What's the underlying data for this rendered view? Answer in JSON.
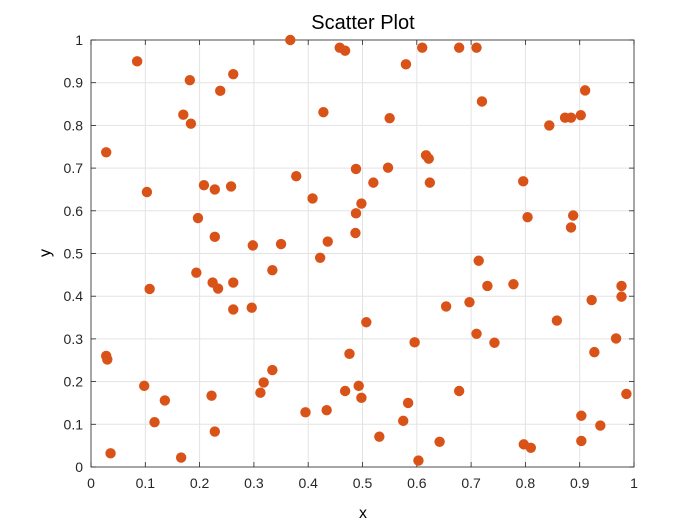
{
  "chart_data": {
    "type": "scatter",
    "title": "Scatter Plot",
    "xlabel": "x",
    "ylabel": "y",
    "xlim": [
      0,
      1
    ],
    "ylim": [
      0,
      1
    ],
    "xticks": [
      0,
      0.1,
      0.2,
      0.3,
      0.4,
      0.5,
      0.6,
      0.7,
      0.8,
      0.9,
      1
    ],
    "yticks": [
      0,
      0.1,
      0.2,
      0.3,
      0.4,
      0.5,
      0.6,
      0.7,
      0.8,
      0.9,
      1
    ],
    "xtick_labels": [
      "0",
      "0.1",
      "0.2",
      "0.3",
      "0.4",
      "0.5",
      "0.6",
      "0.7",
      "0.8",
      "0.9",
      "1"
    ],
    "ytick_labels": [
      "0",
      "0.1",
      "0.2",
      "0.3",
      "0.4",
      "0.5",
      "0.6",
      "0.7",
      "0.8",
      "0.9",
      "1"
    ],
    "grid": true,
    "marker_color": "#D95319",
    "points": [
      {
        "x": 0.085,
        "y": 0.95
      },
      {
        "x": 0.182,
        "y": 0.906
      },
      {
        "x": 0.262,
        "y": 0.92
      },
      {
        "x": 0.367,
        "y": 1.0
      },
      {
        "x": 0.458,
        "y": 0.982
      },
      {
        "x": 0.468,
        "y": 0.975
      },
      {
        "x": 0.58,
        "y": 0.943
      },
      {
        "x": 0.61,
        "y": 0.982
      },
      {
        "x": 0.678,
        "y": 0.982
      },
      {
        "x": 0.71,
        "y": 0.982
      },
      {
        "x": 0.238,
        "y": 0.881
      },
      {
        "x": 0.91,
        "y": 0.882
      },
      {
        "x": 0.17,
        "y": 0.825
      },
      {
        "x": 0.184,
        "y": 0.804
      },
      {
        "x": 0.428,
        "y": 0.831
      },
      {
        "x": 0.55,
        "y": 0.817
      },
      {
        "x": 0.72,
        "y": 0.856
      },
      {
        "x": 0.844,
        "y": 0.8
      },
      {
        "x": 0.873,
        "y": 0.818
      },
      {
        "x": 0.884,
        "y": 0.818
      },
      {
        "x": 0.902,
        "y": 0.824
      },
      {
        "x": 0.028,
        "y": 0.737
      },
      {
        "x": 0.103,
        "y": 0.644
      },
      {
        "x": 0.208,
        "y": 0.66
      },
      {
        "x": 0.228,
        "y": 0.65
      },
      {
        "x": 0.258,
        "y": 0.657
      },
      {
        "x": 0.378,
        "y": 0.681
      },
      {
        "x": 0.408,
        "y": 0.629
      },
      {
        "x": 0.488,
        "y": 0.698
      },
      {
        "x": 0.52,
        "y": 0.666
      },
      {
        "x": 0.547,
        "y": 0.701
      },
      {
        "x": 0.617,
        "y": 0.73
      },
      {
        "x": 0.622,
        "y": 0.722
      },
      {
        "x": 0.624,
        "y": 0.666
      },
      {
        "x": 0.796,
        "y": 0.669
      },
      {
        "x": 0.197,
        "y": 0.583
      },
      {
        "x": 0.488,
        "y": 0.594
      },
      {
        "x": 0.498,
        "y": 0.617
      },
      {
        "x": 0.804,
        "y": 0.585
      },
      {
        "x": 0.888,
        "y": 0.589
      },
      {
        "x": 0.228,
        "y": 0.539
      },
      {
        "x": 0.298,
        "y": 0.519
      },
      {
        "x": 0.35,
        "y": 0.522
      },
      {
        "x": 0.436,
        "y": 0.528
      },
      {
        "x": 0.487,
        "y": 0.548
      },
      {
        "x": 0.884,
        "y": 0.561
      },
      {
        "x": 0.422,
        "y": 0.49
      },
      {
        "x": 0.108,
        "y": 0.417
      },
      {
        "x": 0.194,
        "y": 0.455
      },
      {
        "x": 0.224,
        "y": 0.432
      },
      {
        "x": 0.234,
        "y": 0.418
      },
      {
        "x": 0.262,
        "y": 0.432
      },
      {
        "x": 0.334,
        "y": 0.461
      },
      {
        "x": 0.714,
        "y": 0.483
      },
      {
        "x": 0.73,
        "y": 0.424
      },
      {
        "x": 0.778,
        "y": 0.428
      },
      {
        "x": 0.977,
        "y": 0.424
      },
      {
        "x": 0.262,
        "y": 0.369
      },
      {
        "x": 0.296,
        "y": 0.373
      },
      {
        "x": 0.654,
        "y": 0.376
      },
      {
        "x": 0.697,
        "y": 0.386
      },
      {
        "x": 0.922,
        "y": 0.391
      },
      {
        "x": 0.977,
        "y": 0.399
      },
      {
        "x": 0.507,
        "y": 0.339
      },
      {
        "x": 0.71,
        "y": 0.312
      },
      {
        "x": 0.743,
        "y": 0.291
      },
      {
        "x": 0.858,
        "y": 0.343
      },
      {
        "x": 0.596,
        "y": 0.292
      },
      {
        "x": 0.967,
        "y": 0.301
      },
      {
        "x": 0.028,
        "y": 0.26
      },
      {
        "x": 0.03,
        "y": 0.252
      },
      {
        "x": 0.476,
        "y": 0.265
      },
      {
        "x": 0.927,
        "y": 0.269
      },
      {
        "x": 0.098,
        "y": 0.19
      },
      {
        "x": 0.334,
        "y": 0.227
      },
      {
        "x": 0.318,
        "y": 0.198
      },
      {
        "x": 0.312,
        "y": 0.174
      },
      {
        "x": 0.468,
        "y": 0.178
      },
      {
        "x": 0.493,
        "y": 0.19
      },
      {
        "x": 0.498,
        "y": 0.162
      },
      {
        "x": 0.678,
        "y": 0.178
      },
      {
        "x": 0.136,
        "y": 0.156
      },
      {
        "x": 0.117,
        "y": 0.105
      },
      {
        "x": 0.222,
        "y": 0.167
      },
      {
        "x": 0.584,
        "y": 0.15
      },
      {
        "x": 0.395,
        "y": 0.128
      },
      {
        "x": 0.434,
        "y": 0.133
      },
      {
        "x": 0.575,
        "y": 0.108
      },
      {
        "x": 0.903,
        "y": 0.12
      },
      {
        "x": 0.938,
        "y": 0.097
      },
      {
        "x": 0.228,
        "y": 0.083
      },
      {
        "x": 0.531,
        "y": 0.071
      },
      {
        "x": 0.642,
        "y": 0.059
      },
      {
        "x": 0.797,
        "y": 0.053
      },
      {
        "x": 0.81,
        "y": 0.045
      },
      {
        "x": 0.903,
        "y": 0.061
      },
      {
        "x": 0.036,
        "y": 0.032
      },
      {
        "x": 0.166,
        "y": 0.022
      },
      {
        "x": 0.603,
        "y": 0.015
      },
      {
        "x": 0.986,
        "y": 0.171
      }
    ]
  }
}
